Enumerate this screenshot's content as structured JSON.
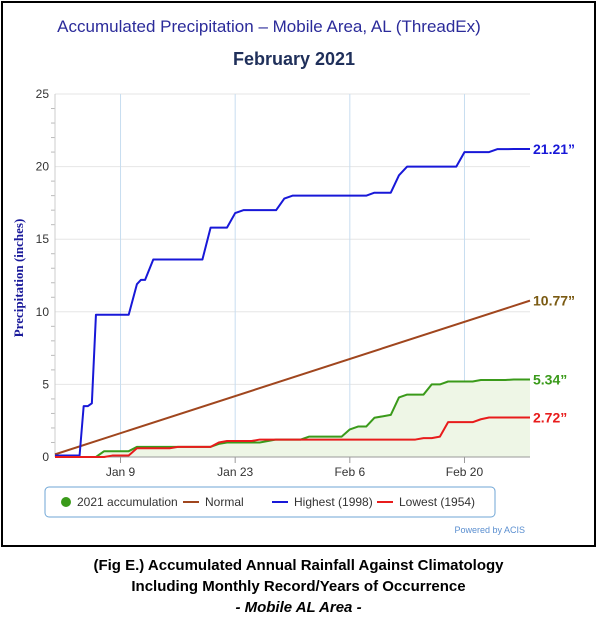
{
  "chart_data": {
    "type": "line",
    "title": "Accumulated Precipitation – Mobile Area, AL (ThreadEx)",
    "subtitle": "February 2021",
    "ylabel": "Precipitation (inches)",
    "xlabel": "",
    "ylim": [
      0,
      25
    ],
    "yticks": [
      "0",
      "5",
      "10",
      "15",
      "20",
      "25"
    ],
    "x_start": "Jan 1",
    "xticks": [
      {
        "label": "Jan 9",
        "day": 9
      },
      {
        "label": "Jan 23",
        "day": 23
      },
      {
        "label": "Feb 6",
        "day": 37
      },
      {
        "label": "Feb 20",
        "day": 51
      }
    ],
    "xlim_days": [
      1,
      59
    ],
    "grid": true,
    "legend_position": "bottom",
    "credit": "Powered by ACIS",
    "series": [
      {
        "name": "2021 accumulation",
        "color": "#3a9a1a",
        "fill": "#eef6e6",
        "end_label": "5.34”",
        "days": [
          1,
          6,
          7,
          8,
          10,
          11,
          12,
          20,
          21,
          22,
          26,
          27,
          28,
          31,
          32,
          36,
          37,
          38,
          39,
          40,
          41,
          42,
          43,
          44,
          46,
          47,
          48,
          49,
          50,
          52,
          53,
          56,
          57,
          59
        ],
        "values": [
          0,
          0,
          0.4,
          0.4,
          0.4,
          0.7,
          0.7,
          0.7,
          0.9,
          1.0,
          1.0,
          1.1,
          1.2,
          1.2,
          1.4,
          1.4,
          1.9,
          2.1,
          2.1,
          2.7,
          2.8,
          2.9,
          4.1,
          4.3,
          4.3,
          5.0,
          5.0,
          5.2,
          5.2,
          5.2,
          5.3,
          5.3,
          5.34,
          5.34
        ]
      },
      {
        "name": "Normal",
        "color": "#a0461e",
        "end_label": "10.77”",
        "days": [
          1,
          59
        ],
        "values": [
          0.18,
          10.77
        ]
      },
      {
        "name": "Highest (1998)",
        "color": "#1818d8",
        "end_label": "21.21”",
        "days": [
          1,
          4,
          4.5,
          5,
          5.5,
          6,
          7,
          8,
          9,
          10,
          11,
          11.5,
          12,
          13,
          14,
          15,
          16,
          17,
          18,
          19,
          20,
          21,
          22,
          23,
          24,
          25,
          26,
          27,
          28,
          29,
          30,
          31,
          32,
          33,
          34,
          35,
          36,
          37,
          38,
          39,
          40,
          41,
          42,
          43,
          44,
          45,
          46,
          47,
          48,
          49,
          50,
          51,
          52,
          53,
          54,
          55,
          56,
          57,
          59
        ],
        "values": [
          0.1,
          0.1,
          3.5,
          3.5,
          3.7,
          9.8,
          9.8,
          9.8,
          9.8,
          9.8,
          11.9,
          12.2,
          12.2,
          13.6,
          13.6,
          13.6,
          13.6,
          13.6,
          13.6,
          13.6,
          15.8,
          15.8,
          15.8,
          16.8,
          17.0,
          17.0,
          17.0,
          17.0,
          17.0,
          17.8,
          18.0,
          18.0,
          18.0,
          18.0,
          18.0,
          18.0,
          18.0,
          18.0,
          18.0,
          18.0,
          18.2,
          18.2,
          18.2,
          19.4,
          20.0,
          20.0,
          20.0,
          20.0,
          20.0,
          20.0,
          20.0,
          21.0,
          21.0,
          21.0,
          21.0,
          21.2,
          21.2,
          21.21,
          21.21
        ]
      },
      {
        "name": "Lowest (1954)",
        "color": "#e81c1c",
        "end_label": "2.72”",
        "days": [
          1,
          7,
          8,
          9,
          10,
          11,
          12,
          15,
          16,
          17,
          20,
          21,
          22,
          24,
          25,
          26,
          27,
          30,
          31,
          43,
          44,
          45,
          46,
          47,
          48,
          49,
          50,
          52,
          53,
          54,
          55,
          57,
          59
        ],
        "values": [
          0,
          0,
          0.1,
          0.1,
          0.1,
          0.6,
          0.6,
          0.6,
          0.7,
          0.7,
          0.7,
          1.0,
          1.1,
          1.1,
          1.1,
          1.2,
          1.2,
          1.2,
          1.2,
          1.2,
          1.2,
          1.2,
          1.3,
          1.3,
          1.4,
          2.4,
          2.4,
          2.4,
          2.6,
          2.72,
          2.72,
          2.72,
          2.72
        ]
      }
    ]
  },
  "caption": {
    "line1": "(Fig E.) Accumulated Annual Rainfall Against Climatology",
    "line2": "Including Monthly Record/Years of Occurrence",
    "line3": "- Mobile AL Area -"
  }
}
